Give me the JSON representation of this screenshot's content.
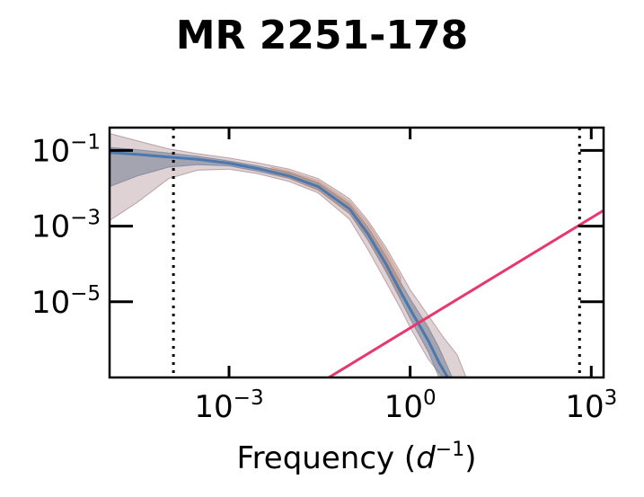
{
  "chart_data": {
    "type": "line",
    "title": "MR 2251-178",
    "xlabel": "Frequency (d^-1)",
    "xlabel_text": "Frequency (",
    "xlabel_unit_base": "d",
    "xlabel_unit_exp": "−1",
    "xlabel_close": ")",
    "ylabel": "",
    "x_scale": "log",
    "y_scale": "log",
    "xlim": [
      1.05e-05,
      1600
    ],
    "ylim": [
      1e-07,
      0.4
    ],
    "x_ticks": [
      {
        "value": 0.001,
        "base": "10",
        "exp": "−3"
      },
      {
        "value": 1,
        "base": "10",
        "exp": "0"
      },
      {
        "value": 1000,
        "base": "10",
        "exp": "3"
      }
    ],
    "y_ticks": [
      {
        "value": 0.1,
        "base": "10",
        "exp": "−1"
      },
      {
        "value": 0.001,
        "base": "10",
        "exp": "−3"
      },
      {
        "value": 1e-05,
        "base": "10",
        "exp": "−5"
      }
    ],
    "vlines": [
      0.00012,
      640
    ],
    "series": [
      {
        "type": "line",
        "color": "#4a78b0",
        "x": [
          1.05e-05,
          3e-05,
          0.0001,
          0.0003,
          0.001,
          0.003,
          0.01,
          0.03,
          0.1,
          0.2,
          0.4,
          0.7,
          1.0,
          2.0,
          3.0,
          4.2
        ],
        "y": [
          0.088,
          0.079,
          0.067,
          0.058,
          0.046,
          0.033,
          0.021,
          0.011,
          0.0028,
          0.00062,
          9.7e-05,
          1.8e-05,
          6.4e-06,
          9.3e-07,
          2.5e-07,
          1e-07
        ]
      },
      {
        "type": "line",
        "color": "#e8366f",
        "x": [
          0.045,
          1600
        ],
        "y": [
          1e-07,
          0.0026
        ]
      }
    ],
    "bands": [
      {
        "color": "#8b5e64",
        "opacity": 0.28,
        "x": [
          1.05e-05,
          3e-05,
          0.0001,
          0.0003,
          0.001,
          0.003,
          0.01,
          0.03,
          0.1,
          0.2,
          0.4,
          0.7,
          1.0,
          2.0,
          3.5,
          6.0,
          8.5
        ],
        "upper": [
          0.28,
          0.18,
          0.11,
          0.082,
          0.063,
          0.047,
          0.032,
          0.018,
          0.0053,
          0.0014,
          0.00027,
          5.8e-05,
          2.1e-05,
          4.3e-06,
          1.2e-06,
          4e-07,
          1e-07
        ],
        "lower": [
          0.0014,
          0.0042,
          0.018,
          0.03,
          0.032,
          0.024,
          0.015,
          0.0075,
          0.0015,
          0.00024,
          3.3e-05,
          6.5e-06,
          2.1e-06,
          3e-07,
          1e-07,
          1e-07,
          1e-07
        ]
      },
      {
        "color": "#5e6a84",
        "opacity": 0.45,
        "x": [
          1.05e-05,
          3e-05,
          0.0001,
          0.0003,
          0.001,
          0.003,
          0.01,
          0.03,
          0.1,
          0.2,
          0.4,
          0.7,
          1.0,
          2.0,
          3.0,
          5.0
        ],
        "upper": [
          0.12,
          0.105,
          0.085,
          0.07,
          0.053,
          0.039,
          0.026,
          0.014,
          0.0038,
          0.00092,
          0.00016,
          3.2e-05,
          1.2e-05,
          2.1e-06,
          6.2e-07,
          1e-07
        ],
        "lower": [
          0.011,
          0.021,
          0.036,
          0.042,
          0.039,
          0.028,
          0.018,
          0.0089,
          0.0021,
          0.00042,
          6.1e-05,
          1.1e-05,
          3.6e-06,
          4.7e-07,
          1e-07,
          1e-07
        ]
      },
      {
        "color": "#c98a6c",
        "opacity": 0.35,
        "x": [
          0.005,
          0.01,
          0.03,
          0.1,
          0.2,
          0.4,
          0.7
        ],
        "upper": [
          0.036,
          0.028,
          0.016,
          0.0045,
          0.0012,
          0.00022,
          4.5e-05
        ],
        "lower": [
          0.024,
          0.018,
          0.009,
          0.0022,
          0.0005,
          7e-05,
          1.2e-05
        ]
      }
    ]
  }
}
